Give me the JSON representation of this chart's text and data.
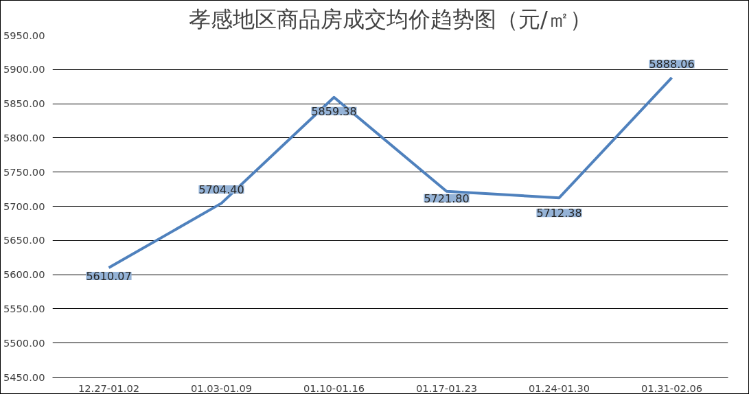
{
  "chart_data": {
    "type": "line",
    "title": "孝感地区商品房成交均价趋势图（元/㎡）",
    "categories": [
      "12.27-01.02",
      "01.03-01.09",
      "01.10-01.16",
      "01.17-01.23",
      "01.24-01.30",
      "01.31-02.06"
    ],
    "series": [
      {
        "color": "#4f81bd",
        "values": [
          5610.07,
          5704.4,
          5859.38,
          5721.8,
          5712.38,
          5888.06
        ],
        "value_labels": [
          "5610.07",
          "5704.40",
          "5859.38",
          "5721.80",
          "5712.38",
          "5888.06"
        ]
      }
    ],
    "ylim": [
      5450,
      5950
    ],
    "yticks": [
      {
        "value": 5450,
        "label": "5450.00"
      },
      {
        "value": 5500,
        "label": "5500.00"
      },
      {
        "value": 5550,
        "label": "5550.00"
      },
      {
        "value": 5600,
        "label": "5600.00"
      },
      {
        "value": 5650,
        "label": "5650.00"
      },
      {
        "value": 5700,
        "label": "5700.00"
      },
      {
        "value": 5750,
        "label": "5750.00"
      },
      {
        "value": 5800,
        "label": "5800.00"
      },
      {
        "value": 5850,
        "label": "5850.00"
      },
      {
        "value": 5900,
        "label": "5900.00"
      },
      {
        "value": 5950,
        "label": "5950.00"
      }
    ],
    "grid": "y",
    "marker": "none",
    "line_style": "solid"
  }
}
